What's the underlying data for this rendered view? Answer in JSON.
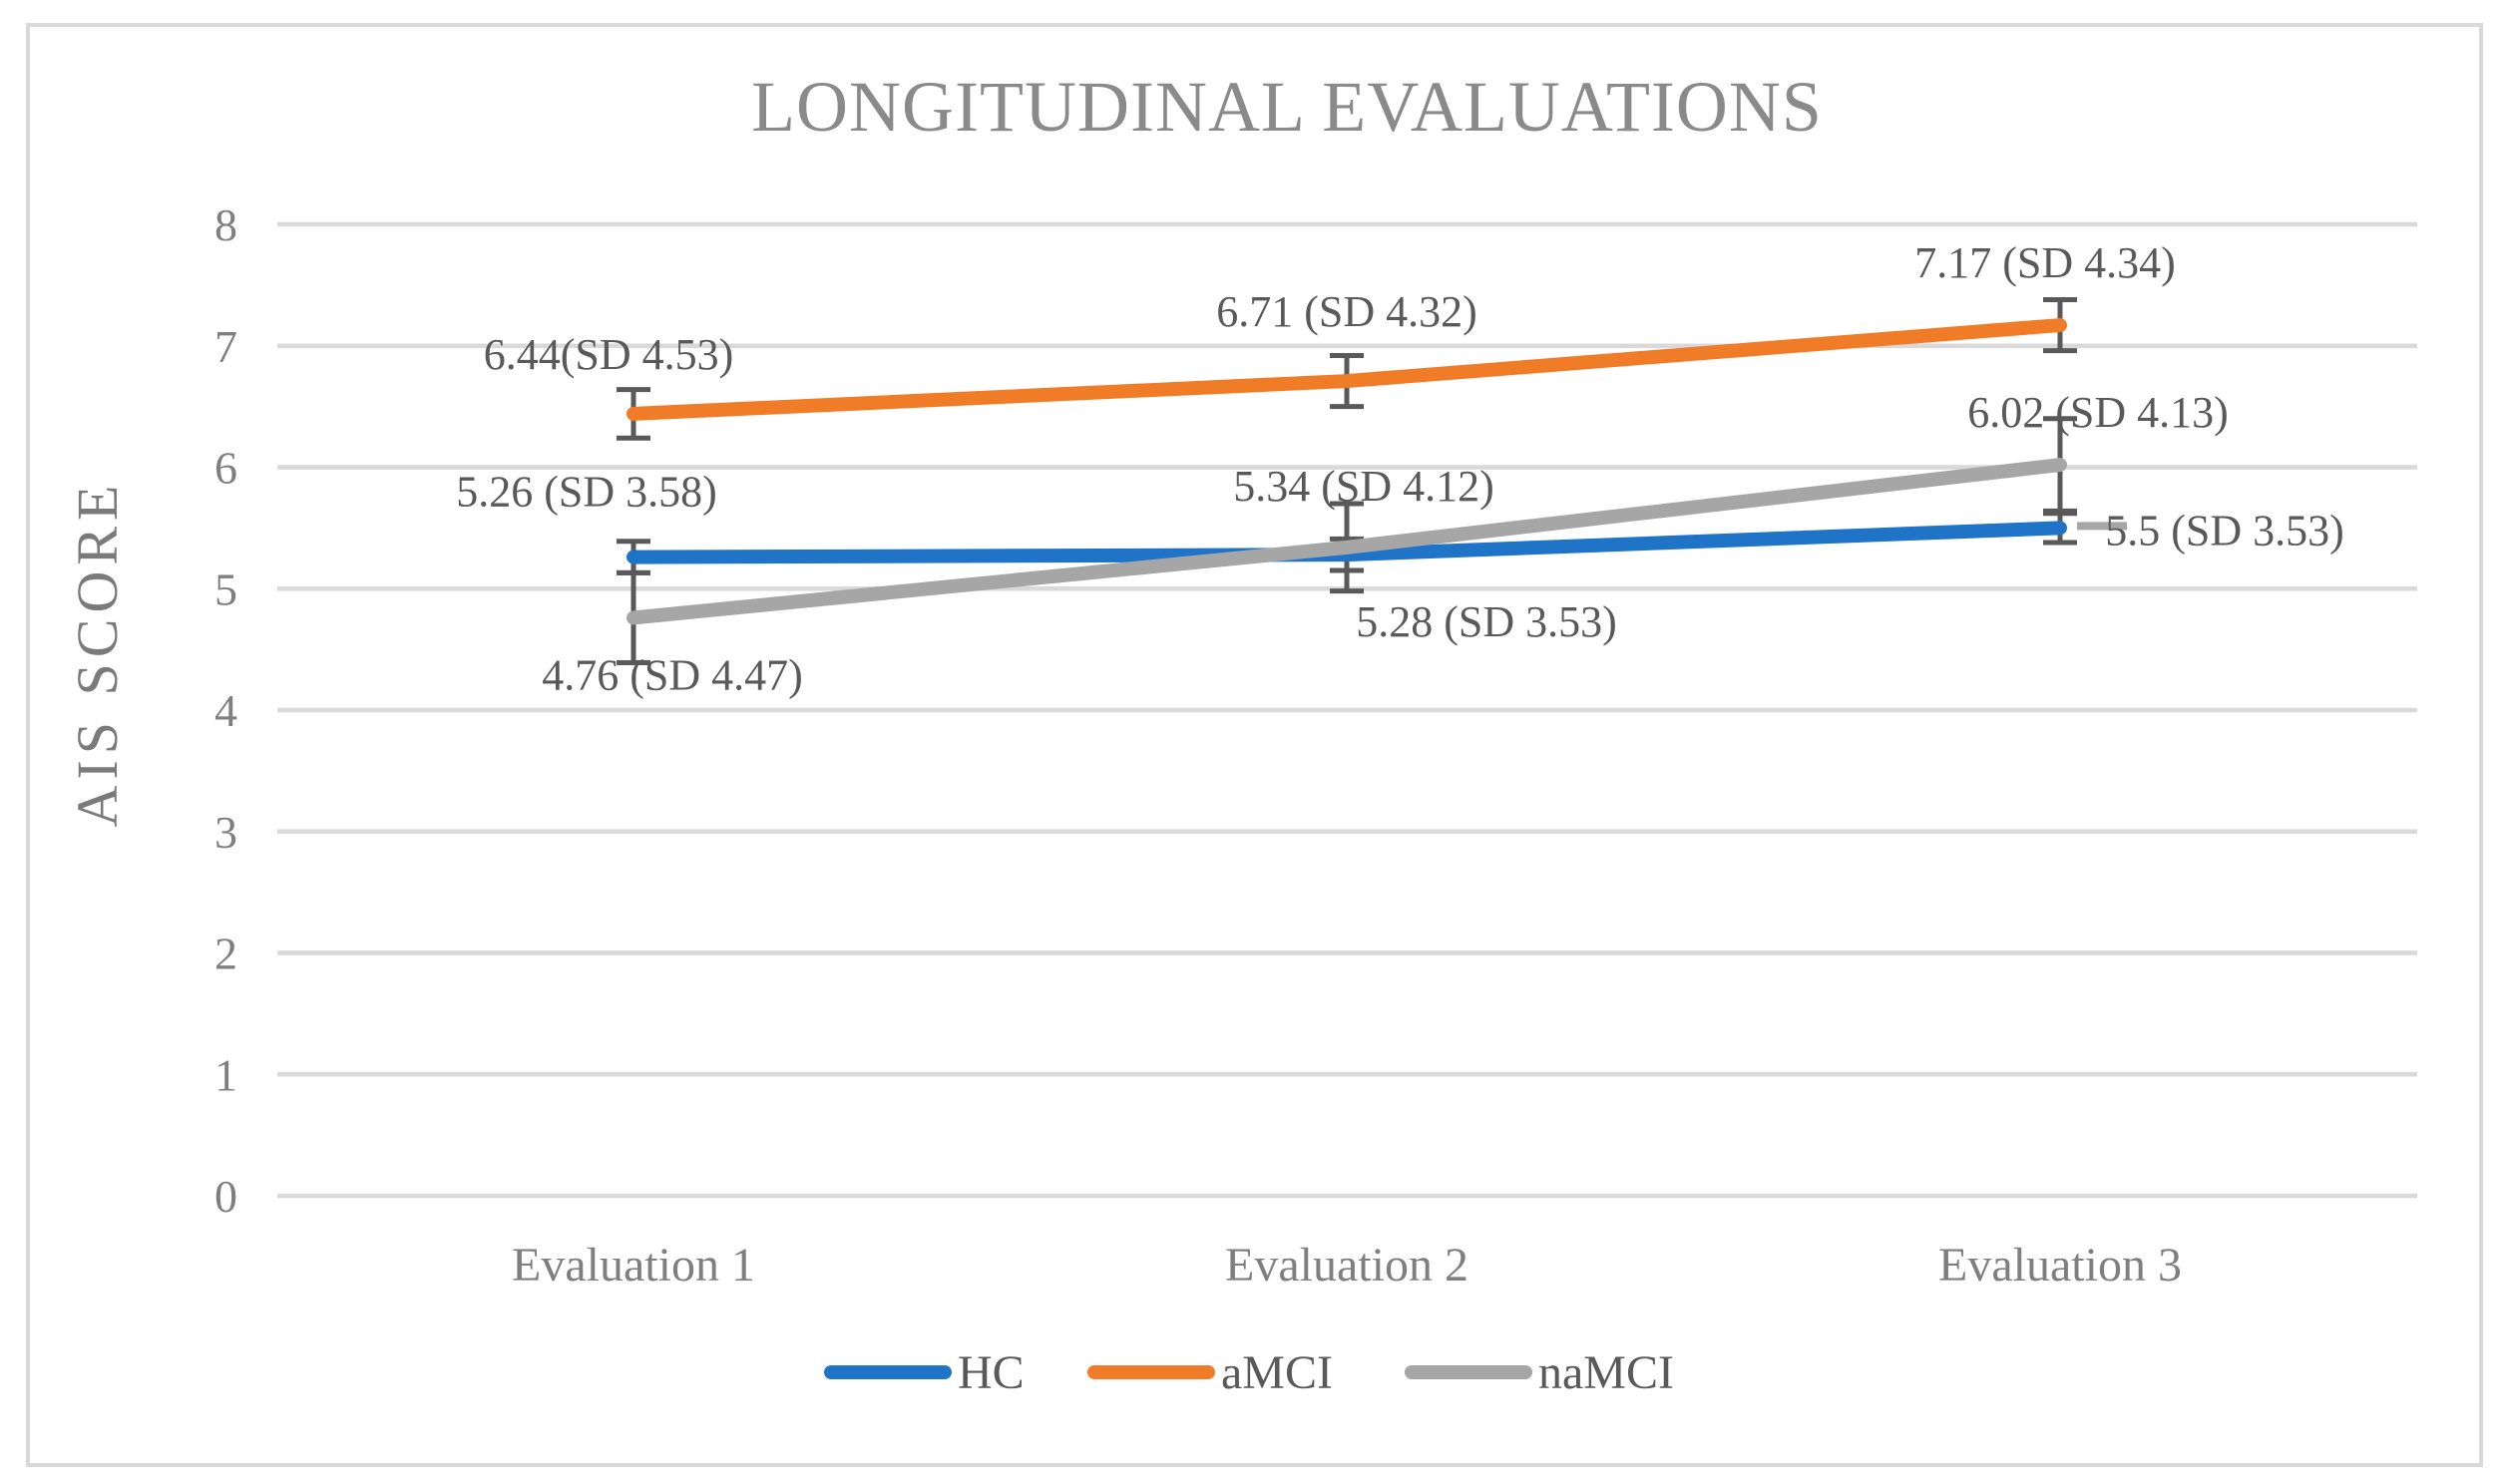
{
  "chart_data": {
    "type": "line",
    "title": "LONGITUDINAL EVALUATIONS",
    "ylabel": "AIS SCORE",
    "xlabel": "",
    "categories": [
      "Evaluation 1",
      "Evaluation 2",
      "Evaluation 3"
    ],
    "ylim": [
      0,
      8
    ],
    "ytick_step": 1,
    "yticks": [
      0,
      1,
      2,
      3,
      4,
      5,
      6,
      7,
      8
    ],
    "grid": true,
    "legend_position": "bottom",
    "series": [
      {
        "name": "HC",
        "color": "#1F74C8",
        "values": [
          5.26,
          5.28,
          5.5
        ],
        "sd": [
          3.58,
          3.53,
          3.53
        ],
        "error": [
          0.13,
          0.13,
          0.12
        ],
        "labels": [
          "5.26 (SD 3.58)",
          "5.28 (SD 3.53)",
          "5.5 (SD 3.53)"
        ],
        "label_offsets": [
          {
            "dx": -47,
            "dy": -66
          },
          {
            "dx": 140,
            "dy": 67
          },
          {
            "dx": 165,
            "dy": 2,
            "leader": true
          }
        ]
      },
      {
        "name": "aMCI",
        "color": "#F07C28",
        "values": [
          6.44,
          6.71,
          7.17
        ],
        "sd": [
          4.53,
          4.32,
          4.34
        ],
        "error": [
          0.2,
          0.21,
          0.21
        ],
        "labels": [
          "6.44(SD 4.53)",
          "6.71 (SD 4.32)",
          "7.17 (SD 4.34)"
        ],
        "label_offsets": [
          {
            "dx": -25,
            "dy": -60
          },
          {
            "dx": 0,
            "dy": -70
          },
          {
            "dx": -15,
            "dy": -63
          }
        ]
      },
      {
        "name": "naMCI",
        "color": "#A6A6A6",
        "values": [
          4.76,
          5.34,
          6.02
        ],
        "sd": [
          4.47,
          4.12,
          4.13
        ],
        "error": [
          0.37,
          0.36,
          0.38
        ],
        "labels": [
          "4.76 (SD 4.47)",
          "5.34 (SD 4.12)",
          "6.02 (SD 4.13)"
        ],
        "label_offsets": [
          {
            "dx": 39,
            "dy": 57
          },
          {
            "dx": 17,
            "dy": -62
          },
          {
            "dx": 38,
            "dy": -53
          }
        ]
      }
    ],
    "colors": {
      "grid": "#D9D9D9",
      "border": "#D9D9D9",
      "title": "#8A8A8A",
      "axis_text": "#7F7F7F",
      "data_label": "#595959",
      "error_bar": "#595959",
      "leader": "#A6A6A6",
      "background": "#FFFFFF"
    }
  }
}
